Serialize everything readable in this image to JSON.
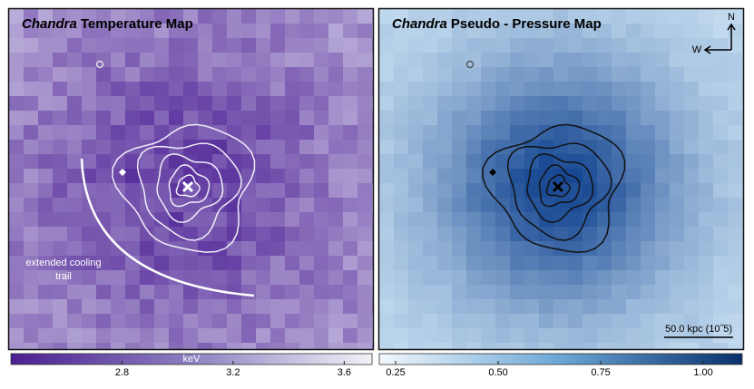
{
  "panels": [
    {
      "title_italic": "Chandra",
      "title": "Temperature Map",
      "annotation": [
        "extended cooling",
        "trail"
      ],
      "colorbar": {
        "label": "keV",
        "range": [
          2.4,
          3.7
        ],
        "ticks": [
          2.8,
          3.2,
          3.6
        ]
      }
    },
    {
      "title_italic": "Chandra",
      "title": "Pseudo - Pressure Map",
      "scale_bar": "50.0 kpc (10˝5)",
      "compass": {
        "north": "N",
        "west": "W"
      },
      "colorbar": {
        "range": [
          0.21,
          1.095
        ],
        "ticks": [
          0.25,
          {
            "value": 0.5,
            "label": "0.50"
          },
          0.75,
          {
            "value": 1,
            "label": "1.00"
          }
        ]
      }
    }
  ]
}
